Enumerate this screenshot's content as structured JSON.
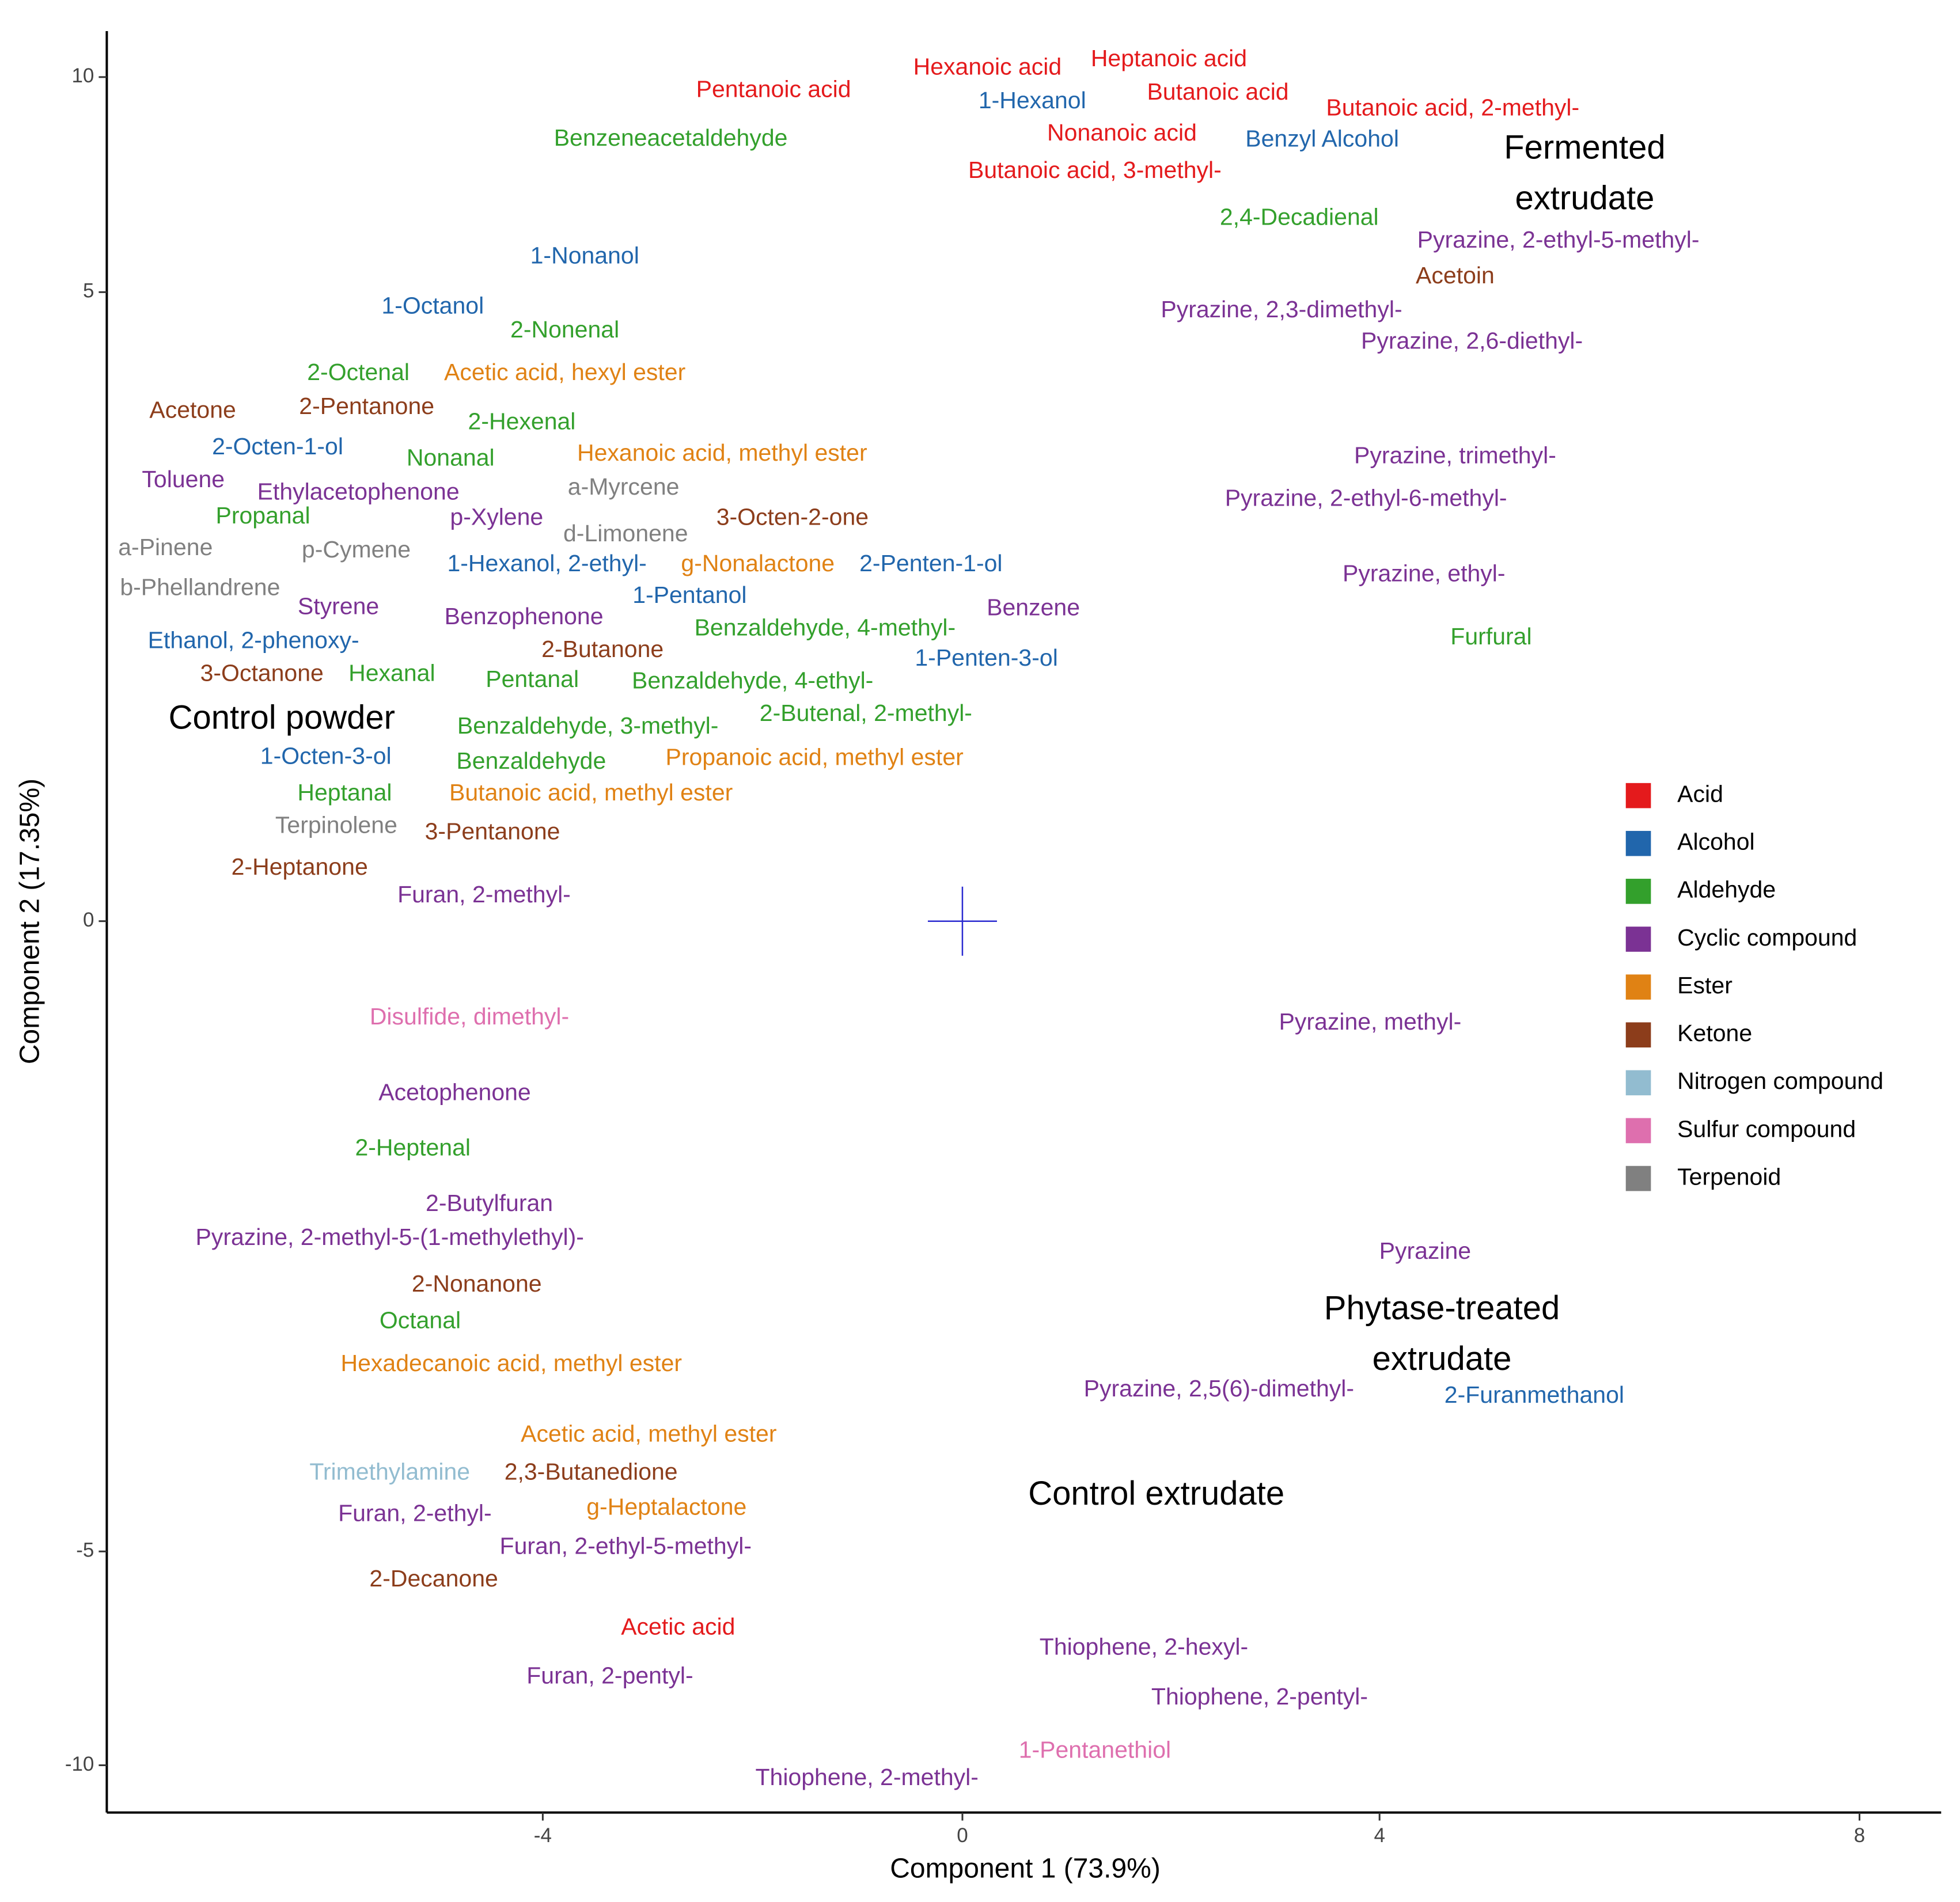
{
  "chart_data": {
    "type": "text-scatter",
    "xlabel": "Component 1 (73.9%)",
    "ylabel": "Component 2 (17.35%)",
    "xlim": [
      -8.16,
      8.68
    ],
    "ylim": [
      -11.1,
      11.07
    ],
    "xticks": [
      -4,
      0,
      4,
      8
    ],
    "yticks": [
      -10,
      -5,
      0,
      5,
      10
    ],
    "center": [
      0,
      0
    ],
    "center_color": "#2a2ad0",
    "legend": "right",
    "series": [
      {
        "name": "Acid",
        "color": "#E41A1C",
        "labels": [
          "Pentanoic acid",
          "Hexanoic acid",
          "Heptanoic acid",
          "Butanoic acid",
          "Butanoic acid, 2-methyl-",
          "Nonanoic acid",
          "Butanoic acid, 3-methyl-",
          "Acetic acid"
        ],
        "x": [
          -1.8,
          0.24,
          1.98,
          2.45,
          4.61,
          1.53,
          1.27,
          -2.71
        ],
        "y": [
          9.68,
          10.2,
          10.4,
          9.62,
          9.25,
          8.67,
          7.8,
          -6.8
        ]
      },
      {
        "name": "Alcohol",
        "color": "#2166AC",
        "labels": [
          "1-Hexanol",
          "Benzyl Alcohol",
          "1-Nonanol",
          "1-Octanol",
          "2-Octen-1-ol",
          "1-Hexanol, 2-ethyl-",
          "2-Penten-1-ol",
          "1-Pentanol",
          "Ethanol, 2-phenoxy-",
          "1-Penten-3-ol",
          "1-Octen-3-ol",
          "2-Furanmethanol"
        ],
        "x": [
          0.67,
          3.45,
          -3.6,
          -5.05,
          -6.53,
          -3.96,
          -0.3,
          -2.6,
          -6.76,
          0.23,
          -6.07,
          5.29
        ],
        "y": [
          9.42,
          8.53,
          5.81,
          4.88,
          3.76,
          2.83,
          2.83,
          2.58,
          2.22,
          2.08,
          1.3,
          -3.77
        ]
      },
      {
        "name": "Aldehyde",
        "color": "#33A02C",
        "labels": [
          "Benzeneacetaldehyde",
          "2,4-Decadienal",
          "2-Nonenal",
          "2-Octenal",
          "2-Hexenal",
          "Nonanal",
          "Propanal",
          "Benzaldehyde, 4-methyl-",
          "Hexanal",
          "Pentanal",
          "Benzaldehyde, 4-ethyl-",
          "Benzaldehyde, 3-methyl-",
          "2-Butenal, 2-methyl-",
          "Benzaldehyde",
          "Heptanal",
          "Furfural",
          "2-Heptenal",
          "Octanal"
        ],
        "x": [
          -2.78,
          3.23,
          -3.79,
          -5.76,
          -4.2,
          -4.88,
          -6.67,
          -1.31,
          -5.44,
          -4.1,
          -2.0,
          -3.57,
          -0.92,
          -4.11,
          -5.89,
          4.93,
          -5.24,
          -5.17
        ],
        "y": [
          8.55,
          6.71,
          4.69,
          4.35,
          3.96,
          3.67,
          3.21,
          2.32,
          1.96,
          1.91,
          1.9,
          1.54,
          1.64,
          1.26,
          1.01,
          2.25,
          -1.81,
          -3.18
        ]
      },
      {
        "name": "Cyclic compound",
        "color": "#7B3294",
        "labels": [
          "Pyrazine, 2-ethyl-5-methyl-",
          "Pyrazine, 2,3-dimethyl-",
          "Pyrazine, 2,6-diethyl-",
          "Toluene",
          "Ethylacetophenone",
          "p-Xylene",
          "Styrene",
          "Benzophenone",
          "Benzene",
          "Furan, 2-methyl-",
          "Pyrazine, trimethyl-",
          "Pyrazine, 2-ethyl-6-methyl-",
          "Pyrazine, ethyl-",
          "Pyrazine, methyl-",
          "Acetophenone",
          "2-Butylfuran",
          "Pyrazine, 2-methyl-5-(1-methylethyl)-",
          "Pyrazine",
          "Pyrazine, 2,5(6)-dimethyl-",
          "Furan, 2-ethyl-",
          "Furan, 2-ethyl-5-methyl-",
          "Thiophene, 2-hexyl-",
          "Furan, 2-pentyl-",
          "Thiophene, 2-pentyl-",
          "Thiophene, 2-methyl-"
        ],
        "x": [
          5.49,
          3.06,
          4.77,
          -7.43,
          -5.76,
          -4.44,
          -5.95,
          -4.18,
          0.68,
          -4.56,
          4.63,
          3.87,
          4.37,
          3.91,
          -4.84,
          -4.51,
          -5.46,
          4.38,
          2.46,
          -5.22,
          -3.21,
          1.74,
          -3.36,
          2.85,
          -0.91
        ],
        "y": [
          6.18,
          4.85,
          4.6,
          3.5,
          3.4,
          3.2,
          2.49,
          2.41,
          2.48,
          0.2,
          3.69,
          3.35,
          2.75,
          -0.81,
          -1.37,
          -2.25,
          -2.52,
          -2.63,
          -3.72,
          -4.71,
          -4.97,
          -7.27,
          -7.94,
          -8.43,
          -10.32
        ]
      },
      {
        "name": "Ester",
        "color": "#E08214",
        "labels": [
          "Acetic acid, hexyl ester",
          "Hexanoic acid, methyl ester",
          "g-Nonalactone",
          "Propanoic acid, methyl ester",
          "Butanoic acid, methyl ester",
          "Hexadecanoic acid, methyl ester",
          "Acetic acid, methyl ester",
          "g-Heptalactone"
        ],
        "x": [
          -3.79,
          -2.29,
          -1.95,
          -1.41,
          -3.54,
          -4.3,
          -2.99,
          -2.82
        ],
        "y": [
          4.35,
          3.71,
          2.83,
          1.29,
          1.01,
          -3.52,
          -4.08,
          -4.66
        ]
      },
      {
        "name": "Ketone",
        "color": "#8C3D1B",
        "labels": [
          "Acetoin",
          "Acetone",
          "2-Pentanone",
          "3-Octen-2-one",
          "2-Butanone",
          "3-Octanone",
          "3-Pentanone",
          "2-Heptanone",
          "2-Nonanone",
          "2,3-Butanedione",
          "2-Decanone"
        ],
        "x": [
          4.63,
          -7.34,
          -5.68,
          -1.62,
          -3.43,
          -6.68,
          -4.48,
          -6.32,
          -4.63,
          -3.54,
          -5.04
        ],
        "y": [
          5.35,
          4.05,
          4.08,
          3.2,
          2.15,
          1.96,
          0.7,
          0.42,
          -2.89,
          -4.38,
          -5.67
        ]
      },
      {
        "name": "Nitrogen compound",
        "color": "#92BCD0",
        "labels": [
          "Trimethylamine"
        ],
        "x": [
          -5.46
        ],
        "y": [
          -4.38
        ]
      },
      {
        "name": "Sulfur compound",
        "color": "#DE6FAE",
        "labels": [
          "Disulfide, dimethyl-",
          "1-Pentanethiol"
        ],
        "x": [
          -4.7,
          1.27
        ],
        "y": [
          -0.77,
          -9.68
        ]
      },
      {
        "name": "Terpenoid",
        "color": "#808080",
        "labels": [
          "a-Myrcene",
          "a-Pinene",
          "p-Cymene",
          "d-Limonene",
          "b-Phellandrene",
          "Terpinolene"
        ],
        "x": [
          -3.23,
          -7.6,
          -5.78,
          -3.21,
          -7.27,
          -5.97
        ],
        "y": [
          3.44,
          2.96,
          2.94,
          3.07,
          2.64,
          0.75
        ]
      }
    ],
    "annotations": [
      {
        "lines": [
          "Fermented",
          "extrudate"
        ],
        "x": 5.71,
        "y": 7.72
      },
      {
        "lines": [
          "Control powder"
        ],
        "x": -6.49,
        "y": 1.6
      },
      {
        "lines": [
          "Phytase-treated",
          "extrudate"
        ],
        "x": 4.52,
        "y": -3.29
      },
      {
        "lines": [
          "Control extrudate"
        ],
        "x": 1.86,
        "y": -4.56
      }
    ]
  }
}
